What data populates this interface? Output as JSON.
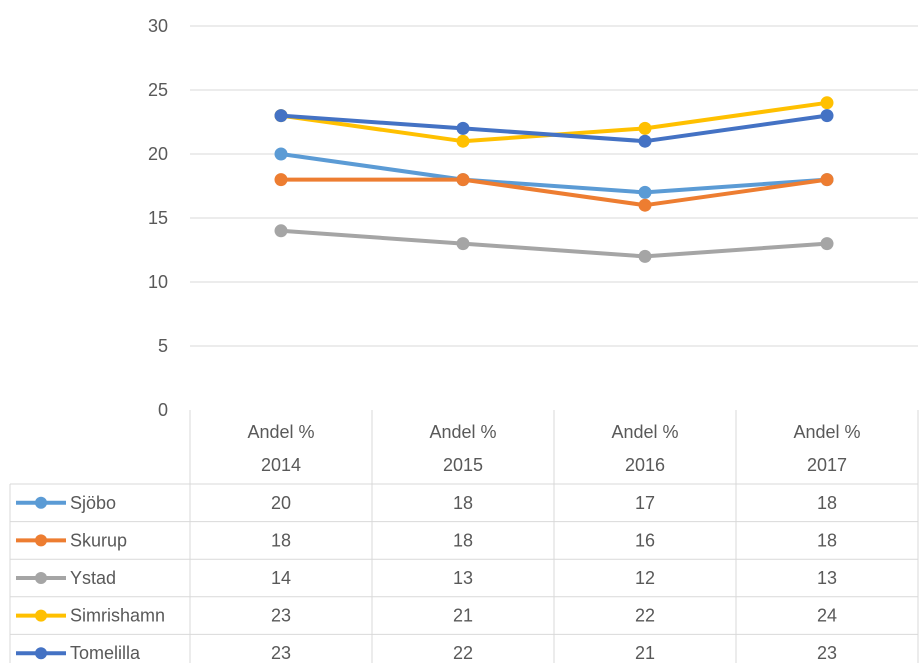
{
  "chart_data": {
    "type": "line",
    "title": "",
    "xlabel": "",
    "ylabel": "",
    "ylim": [
      0,
      30
    ],
    "yticks": [
      0,
      5,
      10,
      15,
      20,
      25,
      30
    ],
    "grid": true,
    "legend_placement": "data-table",
    "categories": [
      {
        "line1": "Andel %",
        "line2": "2014"
      },
      {
        "line1": "Andel %",
        "line2": "2015"
      },
      {
        "line1": "Andel %",
        "line2": "2016"
      },
      {
        "line1": "Andel %",
        "line2": "2017"
      }
    ],
    "series": [
      {
        "name": "Sjöbo",
        "color": "#5B9BD5",
        "values": [
          20,
          18,
          17,
          18
        ]
      },
      {
        "name": "Skurup",
        "color": "#ED7D31",
        "values": [
          18,
          18,
          16,
          18
        ]
      },
      {
        "name": "Ystad",
        "color": "#A5A5A5",
        "values": [
          14,
          13,
          12,
          13
        ]
      },
      {
        "name": "Simrishamn",
        "color": "#FFC000",
        "values": [
          23,
          21,
          22,
          24
        ]
      },
      {
        "name": "Tomelilla",
        "color": "#4472C4",
        "values": [
          23,
          22,
          21,
          23
        ]
      }
    ]
  }
}
